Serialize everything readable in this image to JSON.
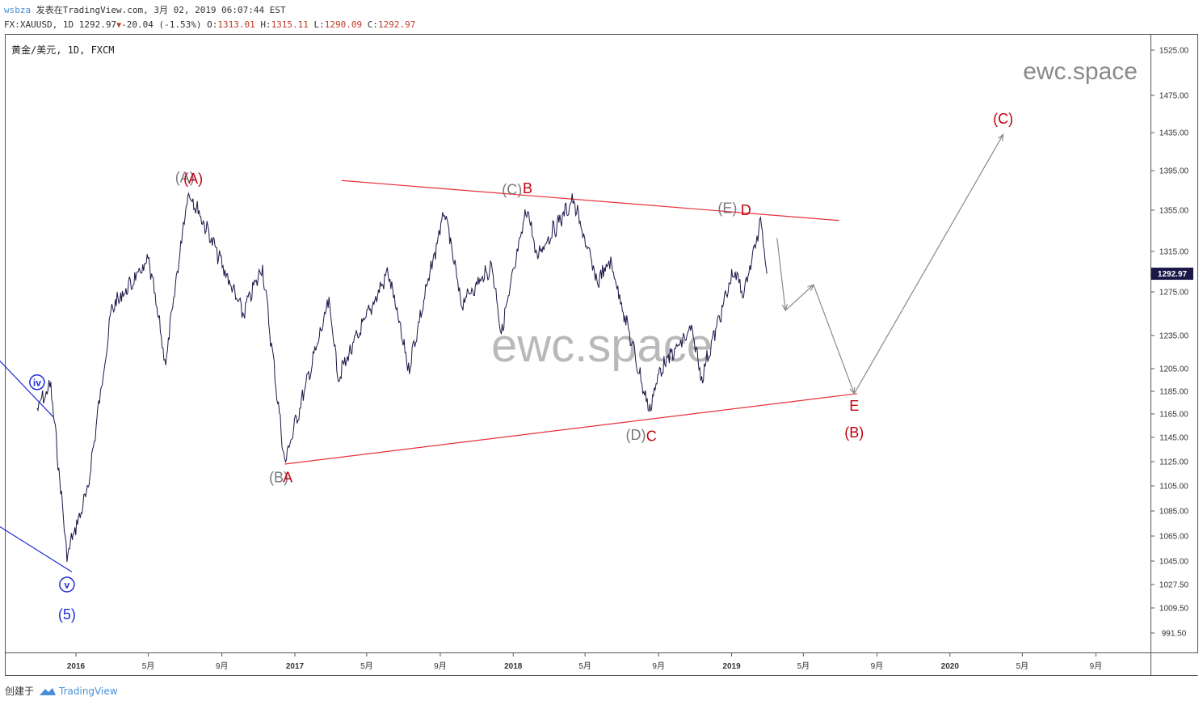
{
  "header": {
    "user": "wsbza",
    "published": "发表在TradingView.com, 3月 02, 2019 06:07:44 EST",
    "symbol": "FX:XAUUSD, 1D",
    "last": "1292.97",
    "change": "-20.04 (-1.53%)",
    "o_label": "O:",
    "o": "1313.01",
    "h_label": "H:",
    "h": "1315.11",
    "l_label": "L:",
    "l": "1290.09",
    "c_label": "C:",
    "c": "1292.97"
  },
  "chart_title": "黄金/美元, 1D, FXCM",
  "watermark": "ewc.space",
  "price_tag": "1292.97",
  "footer": {
    "created": "创建于",
    "brand": "TradingView"
  },
  "chart_data": {
    "type": "line",
    "x_ticks": [
      "2016",
      "5月",
      "9月",
      "2017",
      "5月",
      "9月",
      "2018",
      "5月",
      "9月",
      "2019",
      "5月",
      "9月",
      "2020",
      "5月",
      "9月"
    ],
    "y_ticks": [
      1525,
      1475,
      1435,
      1395,
      1355,
      1315,
      1275,
      1235,
      1205,
      1185,
      1165,
      1145,
      1125,
      1105,
      1085,
      1065,
      1045,
      1027.5,
      1009.5,
      991.5
    ],
    "ylim": [
      975,
      1540
    ],
    "color": "#1b1748",
    "series": [
      {
        "x": [
          "2015-10-28",
          "2015-11-20",
          "2015-12-17",
          "2016-01-20",
          "2016-03-01",
          "2016-05-02",
          "2016-05-30",
          "2016-07-06",
          "2016-08-01",
          "2016-10-06",
          "2016-11-08",
          "2016-12-15",
          "2017-02-27",
          "2017-03-15",
          "2017-06-06",
          "2017-07-10",
          "2017-09-08",
          "2017-10-06",
          "2017-11-27",
          "2017-12-12",
          "2018-01-25",
          "2018-02-08",
          "2018-04-11",
          "2018-05-21",
          "2018-06-13",
          "2018-08-16",
          "2018-09-04",
          "2018-10-26",
          "2018-11-12",
          "2019-01-04",
          "2019-01-21",
          "2019-02-20",
          "2019-03-01"
        ],
        "y": [
          1170,
          1190,
          1050,
          1100,
          1260,
          1305,
          1210,
          1375,
          1345,
          1255,
          1300,
          1125,
          1265,
          1198,
          1295,
          1205,
          1355,
          1265,
          1300,
          1238,
          1360,
          1310,
          1365,
          1285,
          1305,
          1168,
          1205,
          1240,
          1198,
          1295,
          1275,
          1345,
          1293
        ]
      }
    ],
    "wave_labels": [
      {
        "text": "iv",
        "color": "blue",
        "date": "2015-10-28",
        "price": 1193
      },
      {
        "text": "v",
        "color": "blue",
        "date": "2015-12-17",
        "price": 1027.5
      },
      {
        "text": "(5)",
        "color": "blue",
        "date": "2015-12-17",
        "price": 1005
      },
      {
        "text": "(A)",
        "color": "gray",
        "date": "2016-07-01",
        "price": 1388
      },
      {
        "text": "(A)",
        "color": "red",
        "date": "2016-07-15",
        "price": 1387
      },
      {
        "text": "(B)",
        "color": "gray",
        "date": "2016-12-05",
        "price": 1112
      },
      {
        "text": "A",
        "color": "red",
        "date": "2016-12-20",
        "price": 1112
      },
      {
        "text": "(C)",
        "color": "gray",
        "date": "2017-12-30",
        "price": 1376
      },
      {
        "text": "B",
        "color": "red",
        "date": "2018-01-25",
        "price": 1377
      },
      {
        "text": "(D)",
        "color": "gray",
        "date": "2018-07-25",
        "price": 1147
      },
      {
        "text": "C",
        "color": "red",
        "date": "2018-08-20",
        "price": 1146
      },
      {
        "text": "(E)",
        "color": "gray",
        "date": "2018-12-25",
        "price": 1357
      },
      {
        "text": "D",
        "color": "red",
        "date": "2019-01-25",
        "price": 1355
      },
      {
        "text": "E",
        "color": "red",
        "date": "2019-07-25",
        "price": 1172
      },
      {
        "text": "(B)",
        "color": "red",
        "date": "2019-07-25",
        "price": 1149
      },
      {
        "text": "(C)",
        "color": "red",
        "date": "2020-03-30",
        "price": 1450
      }
    ],
    "annotations": {
      "upper_trendline": {
        "from": [
          "2017-03-20",
          1385
        ],
        "to": [
          "2019-06-30",
          1345
        ],
        "color": "red"
      },
      "lower_trendline": {
        "from": [
          "2016-12-15",
          1123
        ],
        "to": [
          "2019-07-30",
          1183
        ],
        "color": "red"
      },
      "projection_path": {
        "points": [
          [
            "2019-03-18",
            1328
          ],
          [
            "2019-04-01",
            1258
          ],
          [
            "2019-05-18",
            1282
          ],
          [
            "2019-07-25",
            1183
          ],
          [
            "2020-03-30",
            1433
          ]
        ],
        "color": "gray"
      },
      "channel_lines": [
        {
          "from": [
            "2015-08-25",
            1213
          ],
          "to": [
            "2015-11-25",
            1162
          ],
          "color": "blue"
        },
        {
          "from": [
            "2015-08-25",
            1073
          ],
          "to": [
            "2015-12-25",
            1037
          ],
          "color": "blue"
        }
      ]
    },
    "grid": false,
    "legend": "none"
  }
}
